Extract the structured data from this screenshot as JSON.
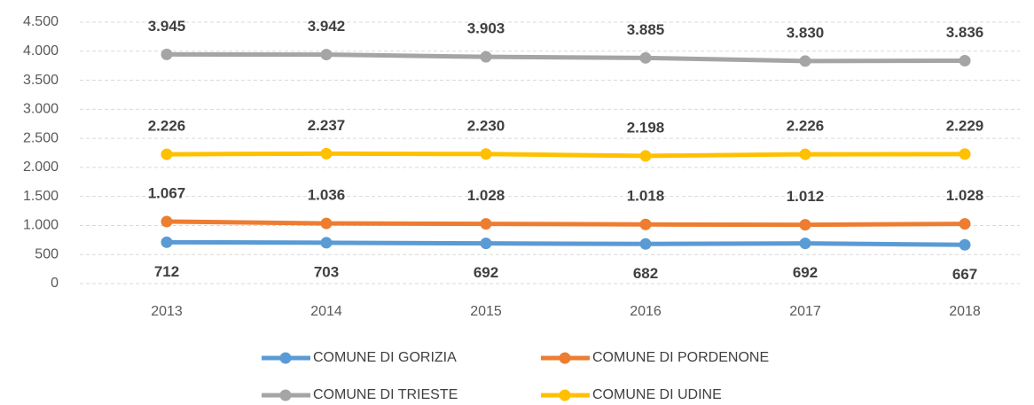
{
  "chart_data": {
    "type": "line",
    "categories": [
      "2013",
      "2014",
      "2015",
      "2016",
      "2017",
      "2018"
    ],
    "series": [
      {
        "name": "COMUNE DI GORIZIA",
        "color": "#5b9bd5",
        "values": [
          712,
          703,
          692,
          682,
          692,
          667
        ]
      },
      {
        "name": "COMUNE DI PORDENONE",
        "color": "#ed7d31",
        "values": [
          1067,
          1036,
          1028,
          1018,
          1012,
          1028
        ],
        "value_labels": [
          "1.067",
          "1.036",
          "1.028",
          "1.018",
          "1.012",
          "1.028"
        ]
      },
      {
        "name": "COMUNE DI TRIESTE",
        "color": "#a5a5a5",
        "values": [
          3945,
          3942,
          3903,
          3885,
          3830,
          3836
        ],
        "value_labels": [
          "3.945",
          "3.942",
          "3.903",
          "3.885",
          "3.830",
          "3.836"
        ]
      },
      {
        "name": "COMUNE DI UDINE",
        "color": "#ffc000",
        "values": [
          2226,
          2237,
          2230,
          2198,
          2226,
          2229
        ],
        "value_labels": [
          "2.226",
          "2.237",
          "2.230",
          "2.198",
          "2.226",
          "2.229"
        ]
      }
    ],
    "ylim": [
      0,
      4500
    ],
    "yticks": [
      0,
      500,
      {
        "value": 1000,
        "label": "1.000"
      },
      {
        "value": 1500,
        "label": "1.500"
      },
      {
        "value": 2000,
        "label": "2.000"
      },
      {
        "value": 2500,
        "label": "2.500"
      },
      {
        "value": 3000,
        "label": "3.000"
      },
      {
        "value": 3500,
        "label": "3.500"
      },
      {
        "value": 4000,
        "label": "4.000"
      },
      {
        "value": 4500,
        "label": "4.500"
      }
    ],
    "grid": true,
    "legend": "bottom"
  }
}
